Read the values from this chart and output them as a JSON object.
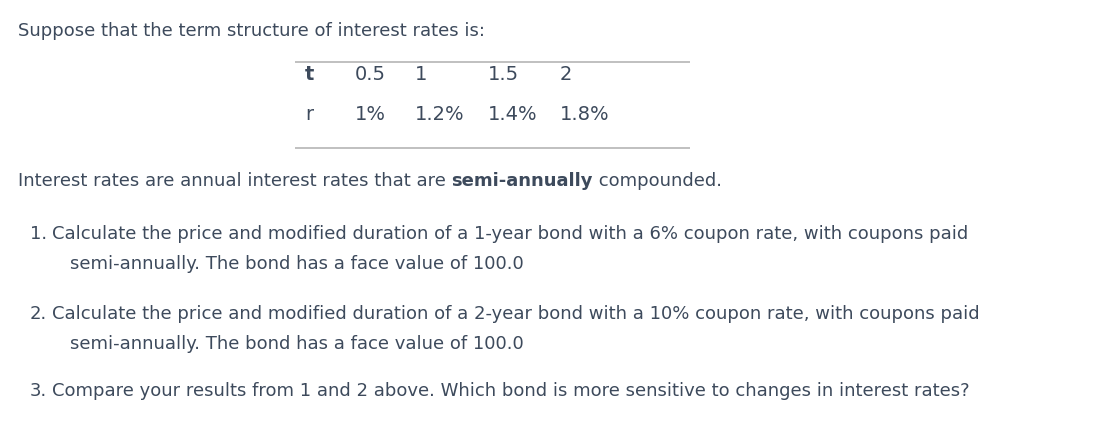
{
  "title_text": "Suppose that the term structure of interest rates is:",
  "table_headers": [
    "t",
    "0.5",
    "1",
    "1.5",
    "2"
  ],
  "table_row_label": "r",
  "table_row_values": [
    "1%",
    "1.2%",
    "1.4%",
    "1.8%"
  ],
  "interest_line_plain": "Interest rates are annual interest rates that are ",
  "interest_line_bold": "semi-annually",
  "interest_line_end": " compounded.",
  "items": [
    {
      "number": "1.",
      "line1": "Calculate the price and modified duration of a 1-year bond with a 6% coupon rate, with coupons paid",
      "line2": "semi-annually. The bond has a face value of 100.0"
    },
    {
      "number": "2.",
      "line1": "Calculate the price and modified duration of a 2-year bond with a 10% coupon rate, with coupons paid",
      "line2": "semi-annually. The bond has a face value of 100.0"
    },
    {
      "number": "3.",
      "line1": "Compare your results from 1 and 2 above. Which bond is more sensitive to changes in interest rates?",
      "line2": ""
    }
  ],
  "bg_color": "#ffffff",
  "text_color": "#3d4a5c",
  "font_size": 13.0,
  "table_font_size": 14.0,
  "line_color": "#bbbbbb",
  "fig_width": 11.08,
  "fig_height": 4.37,
  "dpi": 100
}
